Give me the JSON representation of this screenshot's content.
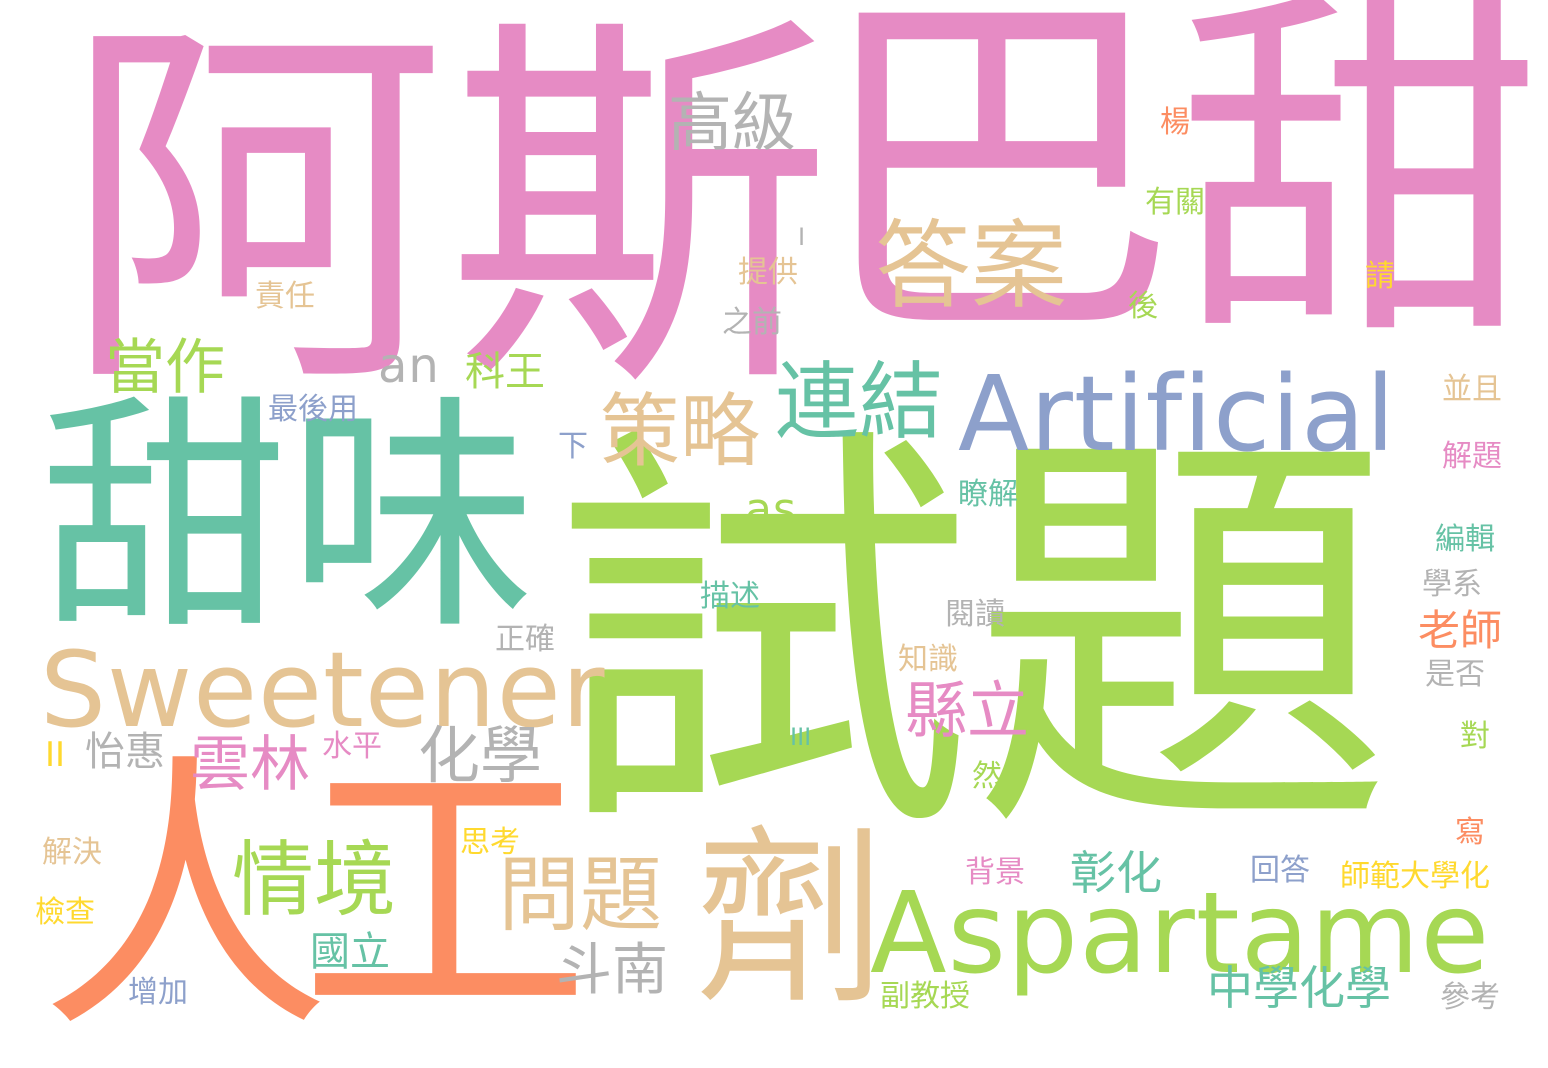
{
  "colors": {
    "pink": "#e68bc4",
    "green": "#a6d854",
    "teal": "#66c2a5",
    "orange": "#fc8d62",
    "tan": "#e5c494",
    "blue": "#8da0cb",
    "gray": "#b3b3b3",
    "yellow": "#ffd92f"
  },
  "words": {
    "a_si": "阿斯",
    "ba_tian": "巴甜",
    "shi_ti": "試題",
    "tian_wei": "甜味",
    "ren": "人",
    "gong": "工",
    "ji": "劑",
    "artificial": "Artificial",
    "aspartame": "Aspartame",
    "sweetener": "Sweetener",
    "da_an": "答案",
    "gao_ji": "高級",
    "lian_jie": "連結",
    "ce_lue": "策略",
    "dang_zuo": "當作",
    "qing_jing": "情境",
    "wen_ti": "問題",
    "hua_xue": "化學",
    "yun_lin": "雲林",
    "xian_li": "縣立",
    "dou_nan": "斗南",
    "zhong_xue_hua_xue": "中學化學",
    "zhang_hua": "彰化",
    "guo_li": "國立",
    "lao_shi": "老師",
    "an": "an",
    "as": "as",
    "ke_wang": "科王",
    "ii": "II",
    "iii": "III",
    "i": "I",
    "yi_hui": "怡惠",
    "shui_ping": "水平",
    "jie_jue": "解決",
    "jian_cha": "檢查",
    "zeng_jia": "增加",
    "si_kao": "思考",
    "zui_hou_yong": "最後用",
    "ze_ren": "責任",
    "ti_gong": "提供",
    "zhi_qian": "之前",
    "you_guan": "有關",
    "yang": "楊",
    "hou": "後",
    "qing": "請",
    "bing_qie": "並且",
    "jie_ti": "解題",
    "bian_ji": "編輯",
    "xue_xi": "學系",
    "shi_fou": "是否",
    "dui": "對",
    "xie": "寫",
    "shi_fan": "師範大學化",
    "hui_da": "回答",
    "can_kao": "參考",
    "liao_jie": "瞭解",
    "miao_shu": "描述",
    "yue_du": "閱讀",
    "zhi_shi": "知識",
    "zheng_que": "正確",
    "ran": "然",
    "bei_jing": "背景",
    "fu_jiao_shou": "副教授",
    "xia": "下"
  }
}
